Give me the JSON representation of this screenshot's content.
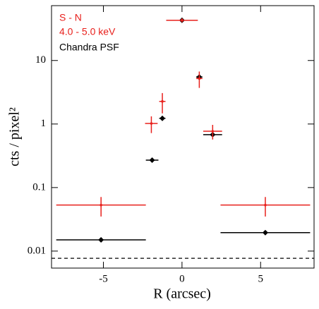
{
  "chart_data": {
    "type": "errorbar",
    "xlabel": "R (arcsec)",
    "ylabel": "cts / pixel²",
    "annotations": [
      "4.0 - 5.0 keV"
    ],
    "xlim": [
      -8.3,
      8.4
    ],
    "ylim": [
      0.0054,
      73
    ],
    "log_y": true,
    "xticks": [
      -5,
      0,
      5
    ],
    "yticks": [
      0.01,
      0.1,
      1,
      10
    ],
    "hline": 0.0077,
    "series": [
      {
        "name": "S - N",
        "color": "#e8201c",
        "x": [
          -5.15,
          -1.95,
          -1.25,
          0,
          1.1,
          1.95,
          5.3
        ],
        "xerr": [
          2.85,
          0.4,
          0.2,
          1.0,
          0.2,
          0.6,
          2.85
        ],
        "values": [
          0.053,
          1.02,
          2.27,
          43,
          5.2,
          0.77,
          0.053
        ],
        "yerr": [
          0.018,
          0.3,
          0.8,
          3,
          1.5,
          0.2,
          0.018
        ]
      },
      {
        "name": "Chandra PSF",
        "color": "#000000",
        "x": [
          -5.15,
          -1.9,
          -1.25,
          0,
          1.1,
          1.95,
          5.3
        ],
        "xerr": [
          2.85,
          0.4,
          0.2,
          1.0,
          0.2,
          0.6,
          2.85
        ],
        "values": [
          0.015,
          0.27,
          1.23,
          43,
          5.5,
          0.68,
          0.0195
        ]
      }
    ]
  }
}
